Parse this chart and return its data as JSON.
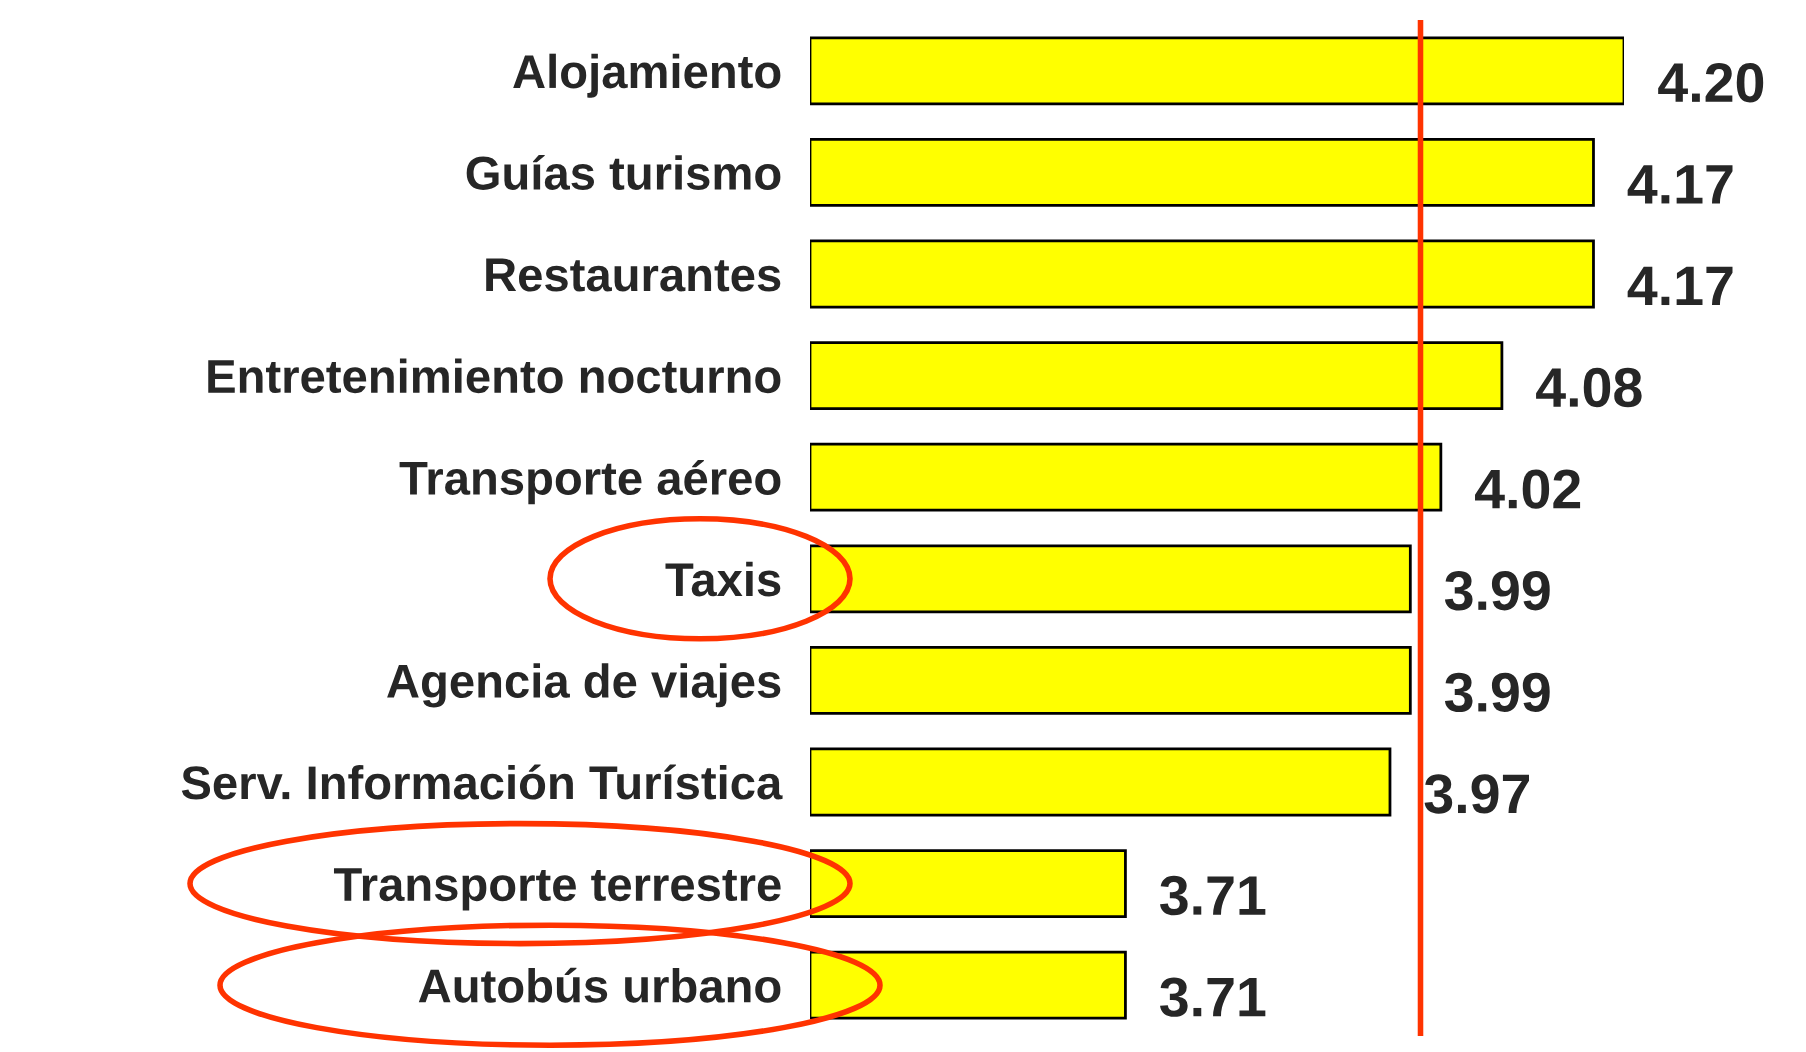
{
  "chart_data": {
    "type": "bar",
    "orientation": "horizontal",
    "categories": [
      "Alojamiento",
      "Guías turismo",
      "Restaurantes",
      "Entretenimiento nocturno",
      "Transporte aéreo",
      "Taxis",
      "Agencia de viajes",
      "Serv. Información Turística",
      "Transporte terrestre",
      "Autobús urbano"
    ],
    "values": [
      4.2,
      4.17,
      4.17,
      4.08,
      4.02,
      3.99,
      3.99,
      3.97,
      3.71,
      3.71
    ],
    "color": "#ffff00",
    "value_labels": [
      "4.20",
      "4.17",
      "4.17",
      "4.08",
      "4.02",
      "3.99",
      "3.99",
      "3.97",
      "3.71",
      "3.71"
    ],
    "xlim": [
      3.4,
      4.2
    ],
    "tick_labels": "y",
    "grid": false,
    "legend": false,
    "ref_lines": [
      {
        "axis": "x",
        "value": 4.0,
        "color": "#ff3300"
      }
    ]
  }
}
